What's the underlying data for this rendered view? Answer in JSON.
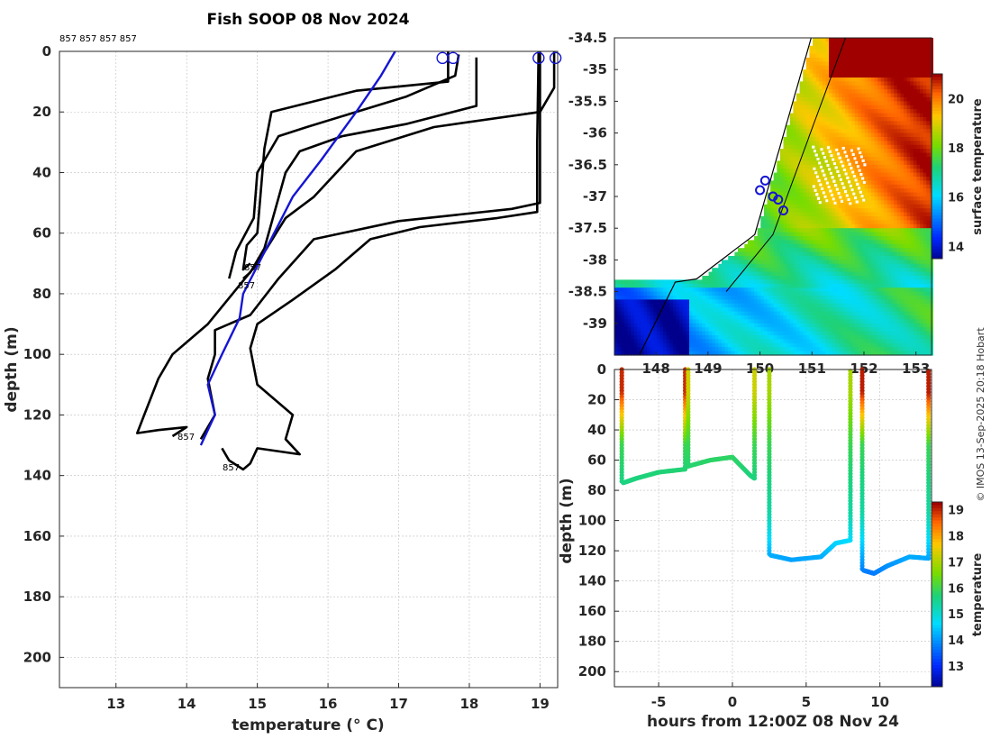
{
  "chart_data": [
    {
      "type": "line",
      "title": "Fish SOOP 08 Nov 2024",
      "xlabel": "temperature (° C)",
      "ylabel": "depth (m)",
      "xlim": [
        12.2,
        19.25
      ],
      "ylim": [
        210,
        0
      ],
      "xticks": [
        "13",
        "14",
        "15",
        "16",
        "17",
        "18",
        "19"
      ],
      "yticks": [
        "0",
        "20",
        "40",
        "60",
        "80",
        "100",
        "120",
        "140",
        "160",
        "180",
        "200"
      ],
      "top_labels": "857 857 857 857",
      "profile_labels": [
        "857",
        "857",
        "857",
        "857"
      ],
      "series": [
        {
          "name": "profile A",
          "color": "#000000",
          "points": [
            [
              17.7,
              0
            ],
            [
              17.7,
              10
            ],
            [
              16.4,
              13
            ],
            [
              15.2,
              20
            ],
            [
              15.1,
              32
            ],
            [
              15.0,
              60
            ],
            [
              14.85,
              64
            ],
            [
              14.8,
              72
            ],
            [
              14.9,
              70
            ]
          ]
        },
        {
          "name": "profile B",
          "color": "#000000",
          "points": [
            [
              17.85,
              1
            ],
            [
              17.8,
              8
            ],
            [
              17.1,
              15
            ],
            [
              15.7,
              25
            ],
            [
              15.3,
              28
            ],
            [
              15.0,
              40
            ],
            [
              14.95,
              55
            ],
            [
              14.7,
              66
            ],
            [
              14.6,
              75
            ]
          ]
        },
        {
          "name": "profile C",
          "color": "#000000",
          "points": [
            [
              19.2,
              0
            ],
            [
              19.2,
              12
            ],
            [
              19.0,
              20
            ],
            [
              17.5,
              25
            ],
            [
              16.4,
              33
            ],
            [
              15.8,
              48
            ],
            [
              15.4,
              55
            ],
            [
              15.0,
              70
            ],
            [
              14.3,
              90
            ],
            [
              13.8,
              100
            ],
            [
              13.6,
              108
            ],
            [
              13.4,
              120
            ],
            [
              13.3,
              126
            ],
            [
              13.6,
              125
            ],
            [
              14.0,
              124
            ],
            [
              13.8,
              127
            ]
          ]
        },
        {
          "name": "profile D",
          "color": "#000000",
          "points": [
            [
              19.0,
              0
            ],
            [
              19.0,
              20
            ],
            [
              19.0,
              50
            ],
            [
              18.6,
              52
            ],
            [
              17.0,
              56
            ],
            [
              15.8,
              62
            ],
            [
              15.3,
              75
            ],
            [
              14.9,
              87
            ],
            [
              14.4,
              92
            ],
            [
              14.4,
              100
            ],
            [
              14.3,
              108
            ],
            [
              14.4,
              120
            ],
            [
              14.2,
              128
            ]
          ]
        },
        {
          "name": "profile E",
          "color": "#000000",
          "points": [
            [
              18.98,
              0
            ],
            [
              18.96,
              30
            ],
            [
              18.96,
              53
            ],
            [
              18.4,
              55
            ],
            [
              17.3,
              58
            ],
            [
              16.6,
              62
            ],
            [
              16.1,
              72
            ],
            [
              15.5,
              82
            ],
            [
              15.0,
              90
            ],
            [
              14.9,
              98
            ],
            [
              15.0,
              110
            ],
            [
              15.5,
              120
            ],
            [
              15.4,
              128
            ],
            [
              15.6,
              133
            ],
            [
              15.0,
              131
            ],
            [
              14.9,
              136
            ],
            [
              14.8,
              138
            ],
            [
              14.6,
              135
            ],
            [
              14.5,
              131
            ]
          ]
        },
        {
          "name": "profile F",
          "color": "#000000",
          "points": [
            [
              18.1,
              2
            ],
            [
              18.1,
              18
            ],
            [
              17.1,
              24
            ],
            [
              16.2,
              28
            ],
            [
              15.6,
              33
            ],
            [
              15.4,
              40
            ],
            [
              15.1,
              65
            ],
            [
              14.9,
              73
            ],
            [
              14.8,
              75
            ]
          ]
        },
        {
          "name": "mean",
          "color": "#1515d4",
          "points": [
            [
              16.95,
              0
            ],
            [
              16.75,
              8
            ],
            [
              16.4,
              20
            ],
            [
              15.9,
              36
            ],
            [
              15.5,
              48
            ],
            [
              15.15,
              64
            ],
            [
              14.8,
              80
            ],
            [
              14.75,
              88
            ],
            [
              14.5,
              100
            ],
            [
              14.3,
              110
            ],
            [
              14.4,
              120
            ],
            [
              14.2,
              130
            ]
          ]
        }
      ],
      "markers": [
        {
          "x": 17.62,
          "y": 1
        },
        {
          "x": 17.77,
          "y": 1
        },
        {
          "x": 18.98,
          "y": 1
        },
        {
          "x": 19.22,
          "y": 1
        }
      ]
    },
    {
      "type": "heatmap",
      "title": "",
      "xlabel": "",
      "ylabel": "",
      "xlim": [
        147.2,
        153.3
      ],
      "ylim": [
        -39.5,
        -34.5
      ],
      "xticks": [
        "148",
        "149",
        "150",
        "151",
        "152",
        "153"
      ],
      "yticks": [
        "-34.5",
        "-35",
        "-35.5",
        "-36",
        "-36.5",
        "-37",
        "-37.5",
        "-38",
        "-38.5",
        "-39"
      ],
      "colorbar": {
        "label": "surface temperature",
        "range": [
          13.5,
          21
        ],
        "ticks": [
          "14",
          "16",
          "18",
          "20"
        ]
      },
      "track_points": [
        [
          150.1,
          -36.75
        ],
        [
          150.0,
          -36.9
        ],
        [
          150.25,
          -37.0
        ],
        [
          150.35,
          -37.05
        ],
        [
          150.45,
          -37.22
        ]
      ]
    },
    {
      "type": "scatter",
      "title": "",
      "xlabel": "hours from 12:00Z 08 Nov 24",
      "ylabel": "depth (m)",
      "xlim": [
        -8,
        13.5
      ],
      "ylim": [
        210,
        0
      ],
      "xticks": [
        "-5",
        "0",
        "5",
        "10"
      ],
      "yticks": [
        "0",
        "20",
        "40",
        "60",
        "80",
        "100",
        "120",
        "140",
        "160",
        "180",
        "200"
      ],
      "colorbar": {
        "label": "temperature",
        "range": [
          12.2,
          19.3
        ],
        "ticks": [
          "13",
          "14",
          "15",
          "16",
          "17",
          "18",
          "19"
        ]
      },
      "casts": [
        {
          "x": [
            -7.5,
            -3.2
          ],
          "bottom": [
            [
              -7.5,
              0
            ],
            [
              -7.4,
              75
            ],
            [
              -6.5,
              72
            ],
            [
              -5,
              68
            ],
            [
              -3.2,
              66
            ]
          ],
          "surface_temp": 19.0
        },
        {
          "x": [
            -3.0,
            1.5
          ],
          "bottom": [
            [
              -3.0,
              0
            ],
            [
              -3.0,
              64
            ],
            [
              -1.5,
              60
            ],
            [
              0,
              58
            ],
            [
              1.2,
              70
            ],
            [
              1.5,
              72
            ]
          ],
          "surface_temp": 17.3
        },
        {
          "x": [
            2.5,
            8.0
          ],
          "bottom": [
            [
              2.5,
              0
            ],
            [
              2.6,
              123
            ],
            [
              4,
              126
            ],
            [
              6,
              124
            ],
            [
              7,
              115
            ],
            [
              8,
              113
            ]
          ],
          "surface_temp": 17.0
        },
        {
          "x": [
            8.8,
            13.3
          ],
          "bottom": [
            [
              8.8,
              0
            ],
            [
              8.9,
              133
            ],
            [
              9.6,
              135
            ],
            [
              10.5,
              130
            ],
            [
              12,
              124
            ],
            [
              13.3,
              125
            ]
          ],
          "surface_temp": 19.1
        }
      ]
    }
  ],
  "credit": "© IMOS 13-Sep-2025 20:18 Hobart"
}
